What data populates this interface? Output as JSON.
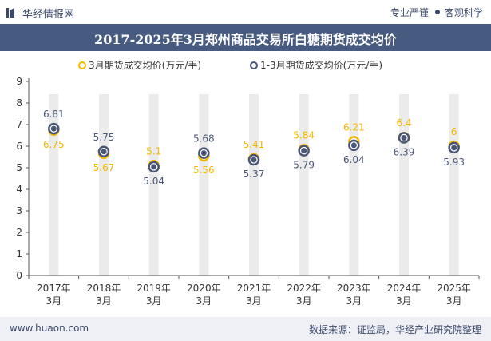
{
  "header": {
    "brand": "华经情报网",
    "right_text_1": "专业严谨",
    "right_text_2": "客观科学"
  },
  "title": "2017-2025年3月郑州商品交易所白糖期货成交均价",
  "footer": {
    "website": "www.huaon.com",
    "source": "数据来源：证监局，华经产业研究院整理"
  },
  "colors": {
    "series_march": "#f5b800",
    "series_ytd": "#4a5676",
    "title_bg": "#475a80"
  },
  "chart_data": {
    "type": "line",
    "categories": [
      "2017年3月",
      "2018年3月",
      "2019年3月",
      "2020年3月",
      "2021年3月",
      "2022年3月",
      "2023年3月",
      "2024年3月",
      "2025年3月"
    ],
    "series": [
      {
        "name": "3月期货成交均价(万元/手)",
        "values": [
          6.75,
          5.67,
          5.1,
          5.56,
          5.41,
          5.84,
          6.21,
          6.4,
          6
        ]
      },
      {
        "name": "1-3月期货成交均价(万元/手)",
        "values": [
          6.81,
          5.75,
          5.04,
          5.68,
          5.37,
          5.79,
          6.04,
          6.39,
          5.93
        ]
      }
    ],
    "ylim": [
      0,
      9
    ],
    "yticks": [
      0,
      1,
      2,
      3,
      4,
      5,
      6,
      7,
      8,
      9
    ],
    "legend_position": "top",
    "grid": false
  }
}
